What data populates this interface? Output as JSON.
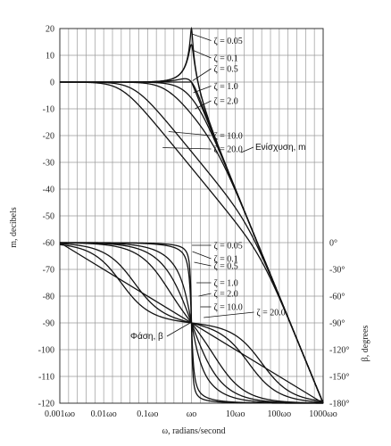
{
  "chart_data": {
    "type": "line",
    "xscale": "log",
    "xlabel": "ω, radians/second",
    "ylabel_left": "m, decibels",
    "ylabel_right": "β, degrees",
    "xlim": [
      0.001,
      1000
    ],
    "ylim_left": [
      -120,
      20
    ],
    "ylim_right": [
      -180,
      0
    ],
    "grid": true,
    "x_ticks": [
      {
        "value": 0.001,
        "label": "0.001ωo"
      },
      {
        "value": 0.01,
        "label": "0.01ωo"
      },
      {
        "value": 0.1,
        "label": "0.1ωo"
      },
      {
        "value": 1,
        "label": "ωo"
      },
      {
        "value": 10,
        "label": "10ωo"
      },
      {
        "value": 100,
        "label": "100ωo"
      },
      {
        "value": 1000,
        "label": "1000ωo"
      }
    ],
    "y_ticks_left": [
      {
        "value": 20,
        "label": "20"
      },
      {
        "value": 10,
        "label": "10"
      },
      {
        "value": 0,
        "label": "0"
      },
      {
        "value": -10,
        "label": "-10"
      },
      {
        "value": -20,
        "label": "-20"
      },
      {
        "value": -30,
        "label": "-30"
      },
      {
        "value": -40,
        "label": "-40"
      },
      {
        "value": -50,
        "label": "-50"
      },
      {
        "value": -60,
        "label": "-60"
      },
      {
        "value": -70,
        "label": "-70"
      },
      {
        "value": -80,
        "label": "-80"
      },
      {
        "value": -90,
        "label": "-90"
      },
      {
        "value": -100,
        "label": "-100"
      },
      {
        "value": -110,
        "label": "-110"
      },
      {
        "value": -120,
        "label": "-120"
      }
    ],
    "y_ticks_right": [
      {
        "value": 0,
        "label": "0°"
      },
      {
        "value": -30,
        "label": "-30°"
      },
      {
        "value": -60,
        "label": "-60°"
      },
      {
        "value": -90,
        "label": "-90°"
      },
      {
        "value": -120,
        "label": "-120°"
      },
      {
        "value": -150,
        "label": "-150°"
      },
      {
        "value": -180,
        "label": "-180°"
      }
    ],
    "magnitude_labels": [
      "ζ = 0.05",
      "ζ = 0.1",
      "ζ = 0.5",
      "ζ = 1.0",
      "ζ = 2.0",
      "ζ = 10.0",
      "ζ = 20.0"
    ],
    "phase_labels": [
      "ζ = 0.05",
      "ζ = 0.1",
      "ζ = 0.5",
      "ζ = 1.0",
      "ζ = 2.0",
      "ζ = 10.0",
      "ζ = 20.0"
    ],
    "magnitude_note": "Ενίσχυση, m",
    "phase_note": "Φάση, β",
    "magnitude_series": [
      {
        "zeta": 0.05,
        "peak_db": 20.0
      },
      {
        "zeta": 0.1,
        "peak_db": 14.0
      },
      {
        "zeta": 0.5,
        "peak_db": 0.0
      },
      {
        "zeta": 1.0,
        "at_wo_db": -6.0
      },
      {
        "zeta": 2.0,
        "at_wo_db": -12.0
      },
      {
        "zeta": 10.0,
        "at_wo_db": -26.0
      },
      {
        "zeta": 20.0,
        "at_wo_db": -32.0
      }
    ],
    "phase_series": [
      {
        "zeta": 0.05,
        "at_wo_deg": -90
      },
      {
        "zeta": 0.1,
        "at_wo_deg": -90
      },
      {
        "zeta": 0.5,
        "at_wo_deg": -90
      },
      {
        "zeta": 1.0,
        "at_wo_deg": -90
      },
      {
        "zeta": 2.0,
        "at_wo_deg": -90
      },
      {
        "zeta": 10.0,
        "at_wo_deg": -90
      },
      {
        "zeta": 20.0,
        "at_wo_deg": -90
      }
    ],
    "asymptotes": [
      {
        "name": "magnitude",
        "description": "0 dB to ωo, then -40 dB/decade",
        "points": [
          [
            0.001,
            0
          ],
          [
            1,
            0
          ],
          [
            1000,
            -120
          ]
        ]
      },
      {
        "name": "phase",
        "description": "0° to -180° over 0.001ωo…1000ωo",
        "points": [
          [
            0.001,
            0
          ],
          [
            1000,
            -180
          ]
        ]
      }
    ]
  }
}
